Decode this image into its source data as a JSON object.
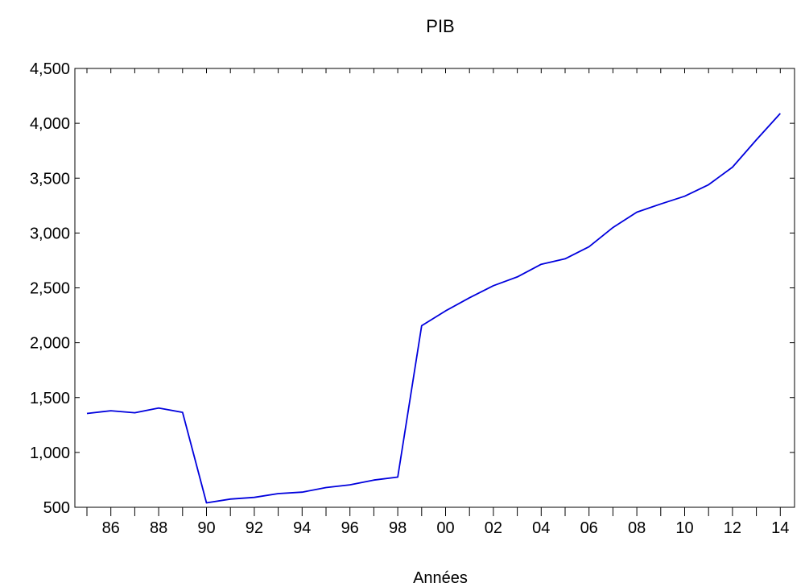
{
  "chart_data": {
    "type": "line",
    "title": "PIB",
    "xlabel": "Années",
    "ylabel": "",
    "xlim": [
      1985,
      2014
    ],
    "ylim": [
      500,
      4500
    ],
    "yticks": [
      500,
      1000,
      1500,
      2000,
      2500,
      3000,
      3500,
      4000,
      4500
    ],
    "ytick_labels": [
      "500",
      "1,000",
      "1,500",
      "2,000",
      "2,500",
      "3,000",
      "3,500",
      "4,000",
      "4,500"
    ],
    "xticks_labeled": [
      1986,
      1988,
      1990,
      1992,
      1994,
      1996,
      1998,
      2000,
      2002,
      2004,
      2006,
      2008,
      2010,
      2012,
      2014
    ],
    "xtick_labels": [
      "86",
      "88",
      "90",
      "92",
      "94",
      "96",
      "98",
      "00",
      "02",
      "04",
      "06",
      "08",
      "10",
      "12",
      "14"
    ],
    "grid": false,
    "legend": "none",
    "series": [
      {
        "color": "#0000dd",
        "x": [
          1985,
          1986,
          1987,
          1988,
          1989,
          1990,
          1991,
          1992,
          1993,
          1994,
          1995,
          1996,
          1997,
          1998,
          1999,
          2000,
          2001,
          2002,
          2003,
          2004,
          2005,
          2006,
          2007,
          2008,
          2009,
          2010,
          2011,
          2012,
          2013,
          2014
        ],
        "values": [
          1355,
          1380,
          1362,
          1405,
          1365,
          540,
          575,
          590,
          625,
          638,
          680,
          705,
          748,
          775,
          2155,
          2290,
          2410,
          2520,
          2600,
          2715,
          2765,
          2875,
          3050,
          3190,
          3265,
          3335,
          3440,
          3600,
          3850,
          4090
        ]
      }
    ]
  }
}
